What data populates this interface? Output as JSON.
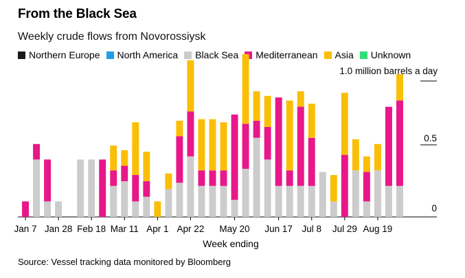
{
  "title": "From the Black Sea",
  "subtitle": "Weekly crude flows from Novorossiysk",
  "unit_label": "1.0 million barrels a day",
  "source": "Source: Vessel tracking data monitored by Bloomberg",
  "legend": [
    {
      "name": "Northern Europe",
      "color": "#1a1a1a"
    },
    {
      "name": "North America",
      "color": "#1f9ee6"
    },
    {
      "name": "Black Sea",
      "color": "#cccccc"
    },
    {
      "name": "Mediterranean",
      "color": "#e8178a"
    },
    {
      "name": "Asia",
      "color": "#fbbe07"
    },
    {
      "name": "Unknown",
      "color": "#33dd77"
    }
  ],
  "chart_data": {
    "type": "bar",
    "stacked": true,
    "xlabel": "Week ending",
    "ylabel": "",
    "ylim": [
      0,
      1.0
    ],
    "y_ticks": [
      {
        "value": 1.0,
        "label": "1.0"
      },
      {
        "value": 0.5,
        "label": "0.5"
      },
      {
        "value": 0,
        "label": "0"
      }
    ],
    "x_tick_labels": [
      {
        "index": 0,
        "label": "Jan 7"
      },
      {
        "index": 3,
        "label": "Jan 28"
      },
      {
        "index": 6,
        "label": "Feb 18"
      },
      {
        "index": 9,
        "label": "Mar 11"
      },
      {
        "index": 12,
        "label": "Apr 1"
      },
      {
        "index": 15,
        "label": "Apr 22"
      },
      {
        "index": 19,
        "label": "May 20"
      },
      {
        "index": 23,
        "label": "Jun 17"
      },
      {
        "index": 26,
        "label": "Jul 8"
      },
      {
        "index": 29,
        "label": "Jul 29"
      },
      {
        "index": 32,
        "label": "Aug 19"
      }
    ],
    "stack_order": [
      "Black Sea",
      "Mediterranean",
      "Asia"
    ],
    "series": [
      {
        "name": "Black Sea",
        "color": "#cccccc",
        "values": [
          0,
          0.37,
          0.1,
          0.1,
          0,
          0.37,
          0.37,
          0,
          0.2,
          0.23,
          0.1,
          0.13,
          0,
          0.18,
          0.22,
          0.39,
          0.2,
          0.2,
          0.2,
          0.11,
          0.31,
          0.51,
          0.37,
          0.2,
          0.2,
          0.2,
          0.2,
          0.29,
          0.1,
          0,
          0.3,
          0.1,
          0.3,
          0.2,
          0.2
        ]
      },
      {
        "name": "Mediterranean",
        "color": "#e8178a",
        "values": [
          0.1,
          0.1,
          0.27,
          0,
          0,
          0,
          0,
          0.37,
          0.1,
          0.1,
          0.17,
          0.1,
          0,
          0,
          0.3,
          0.29,
          0.1,
          0.1,
          0.1,
          0.55,
          0.29,
          0.11,
          0.21,
          0.57,
          0.1,
          0.51,
          0.31,
          0,
          0,
          0.4,
          0,
          0.19,
          0,
          0.51,
          0.55
        ]
      },
      {
        "name": "Asia",
        "color": "#fbbe07",
        "values": [
          0,
          0,
          0,
          0,
          0,
          0,
          0,
          0,
          0.16,
          0.1,
          0.34,
          0.19,
          0.1,
          0.1,
          0.1,
          0.33,
          0.33,
          0.33,
          0.31,
          0,
          0.45,
          0.19,
          0.2,
          0,
          0.45,
          0.1,
          0.22,
          0,
          0.17,
          0.4,
          0.2,
          0.1,
          0.17,
          0,
          0.17
        ]
      }
    ]
  }
}
